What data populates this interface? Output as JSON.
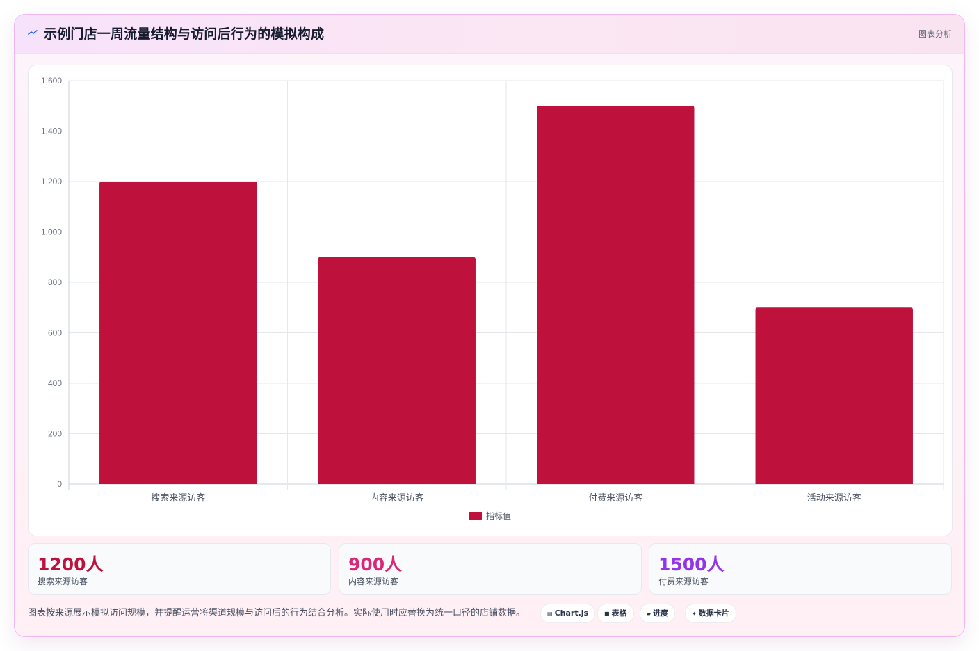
{
  "header": {
    "title": "示例门店一周流量结构与访问后行为的模拟构成",
    "tag": "图表分析",
    "icon": "trend-line-icon"
  },
  "colors": {
    "bar": "#be123c",
    "stat_1": "#be123c",
    "stat_2": "#db2777",
    "stat_3": "#9333ea",
    "grid": "#e5e7eb",
    "axis_text": "#6b7280"
  },
  "chart_data": {
    "type": "bar",
    "categories": [
      "搜索来源访客",
      "内容来源访客",
      "付费来源访客",
      "活动来源访客"
    ],
    "series": [
      {
        "name": "指标值",
        "values": [
          1200,
          900,
          1500,
          700
        ]
      }
    ],
    "ylim": [
      0,
      1600
    ],
    "yticks": [
      "0",
      "200",
      "400",
      "600",
      "800",
      "1,000",
      "1,200",
      "1,400",
      "1,600"
    ],
    "title": "",
    "xlabel": "",
    "ylabel": "",
    "grid": true,
    "legend": "bottom"
  },
  "stats": [
    {
      "value": "1200人",
      "label": "搜索来源访客"
    },
    {
      "value": "900人",
      "label": "内容来源访客"
    },
    {
      "value": "1500人",
      "label": "付费来源访客"
    }
  ],
  "footer": {
    "note": "图表按来源展示模拟访问规模，并提醒运营将渠道规模与访问后的行为结合分析。实际使用时应替换为统一口径的店铺数据。",
    "badges": [
      {
        "icon": "chart-icon",
        "label": "Chart.js"
      },
      {
        "icon": "table-icon",
        "label": "表格"
      },
      {
        "icon": "progress-icon",
        "label": "进度"
      },
      {
        "icon": "sparkle-icon",
        "label": "数据卡片"
      }
    ]
  }
}
